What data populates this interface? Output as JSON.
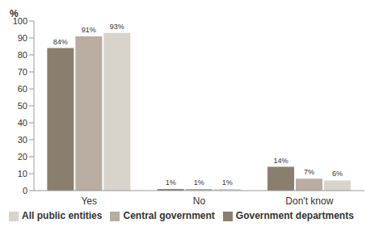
{
  "chart_data": {
    "type": "bar",
    "y_label": "%",
    "categories": [
      "Yes",
      "No",
      "Don't know"
    ],
    "series": [
      {
        "name": "Government departments",
        "color": "#8a7f6e",
        "values": [
          84,
          1,
          14
        ],
        "value_labels": [
          "84%",
          "1%",
          "14%"
        ]
      },
      {
        "name": "Central government",
        "color": "#b8ada0",
        "values": [
          91,
          1,
          7
        ],
        "value_labels": [
          "91%",
          "1%",
          "7%"
        ]
      },
      {
        "name": "All public entities",
        "color": "#d8d4cc",
        "values": [
          93,
          1,
          6
        ],
        "value_labels": [
          "93%",
          "1%",
          "6%"
        ]
      }
    ],
    "ylim": [
      0,
      100
    ],
    "yticks": [
      0,
      10,
      20,
      30,
      40,
      50,
      60,
      70,
      80,
      90,
      100
    ],
    "grid": false,
    "data_labels": true,
    "legend": "bottom"
  }
}
